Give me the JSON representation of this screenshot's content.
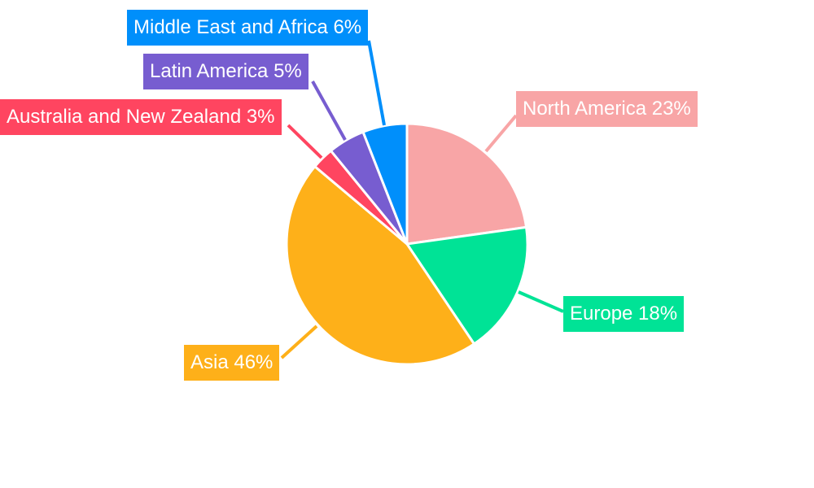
{
  "chart_data": {
    "type": "pie",
    "start": "top",
    "direction": "clockwise",
    "slices": [
      {
        "label": "North America",
        "value": 23,
        "text": "North America 23%",
        "color": "#f8a5a6"
      },
      {
        "label": "Europe",
        "value": 18,
        "text": "Europe 18%",
        "color": "#00e396"
      },
      {
        "label": "Asia",
        "value": 46,
        "text": "Asia 46%",
        "color": "#feb019"
      },
      {
        "label": "Australia and New Zealand",
        "value": 3,
        "text": "Australia and New Zealand 3%",
        "color": "#ff4560"
      },
      {
        "label": "Latin America",
        "value": 5,
        "text": "Latin America 5%",
        "color": "#775dd0"
      },
      {
        "label": "Middle East and Africa",
        "value": 6,
        "text": "Middle East and Africa 6%",
        "color": "#008ffb"
      }
    ]
  }
}
